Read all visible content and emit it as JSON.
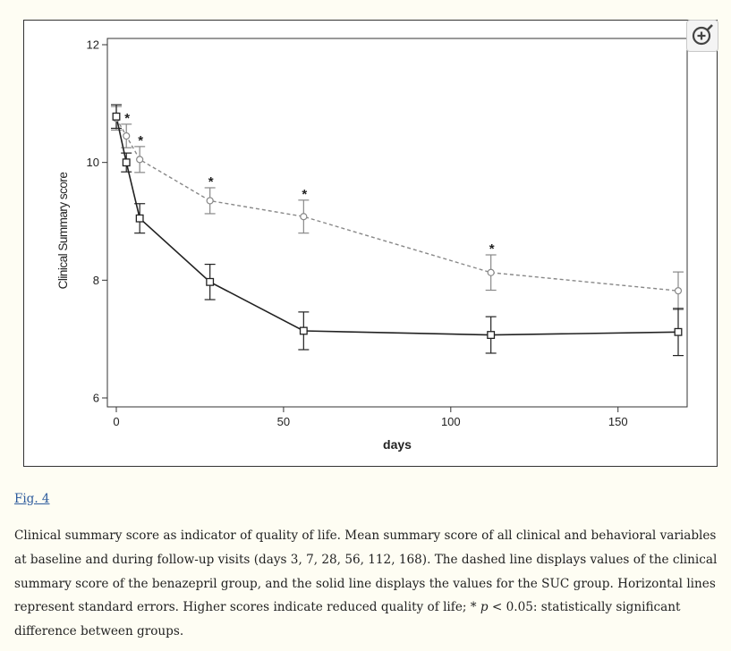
{
  "figure": {
    "link_label": "Fig. 4",
    "caption_parts": {
      "part1": "Clinical summary score as indicator of quality of life. Mean summary score of all clinical and behavioral variables at baseline and during follow-up visits (days 3, 7, 28, 56, 112, 168). The dashed line displays values of the clinical summary score of the benazepril group, and the solid line displays the values for the SUC group. Horizontal lines represent standard errors. Higher scores indicate reduced quality of life; * ",
      "p_symbol": "p",
      "part2": " < 0.05: statistically significant difference between groups."
    },
    "zoom_icon": "zoom-in-magnifier-icon"
  },
  "chart_data": {
    "type": "line",
    "title": "",
    "xlabel": "days",
    "ylabel": "Clinical Summary score",
    "xlim": [
      -2,
      170
    ],
    "ylim": [
      5.8,
      12.2
    ],
    "x_ticks": [
      0,
      50,
      100,
      150
    ],
    "y_ticks": [
      6,
      8,
      10,
      12
    ],
    "x_tick_labels": [
      "0",
      "50",
      "100",
      "150"
    ],
    "y_tick_labels": [
      "6",
      "8",
      "10",
      "12"
    ],
    "grid": false,
    "legend": "none",
    "x": [
      0,
      3,
      7,
      28,
      56,
      112,
      168
    ],
    "series": [
      {
        "style": "dashed",
        "marker": "circle",
        "color": "#888888",
        "values": [
          10.75,
          10.45,
          10.05,
          9.35,
          9.08,
          8.13,
          7.82
        ],
        "errors": [
          0.2,
          0.2,
          0.22,
          0.22,
          0.28,
          0.3,
          0.32
        ]
      },
      {
        "style": "solid",
        "marker": "square",
        "color": "#222222",
        "values": [
          10.78,
          10.0,
          9.05,
          7.97,
          7.14,
          7.07,
          7.12
        ],
        "errors": [
          0.2,
          0.16,
          0.25,
          0.3,
          0.32,
          0.31,
          0.4
        ]
      }
    ],
    "significance_marker": "*",
    "significant_x": [
      3,
      7,
      28,
      56,
      112
    ]
  }
}
